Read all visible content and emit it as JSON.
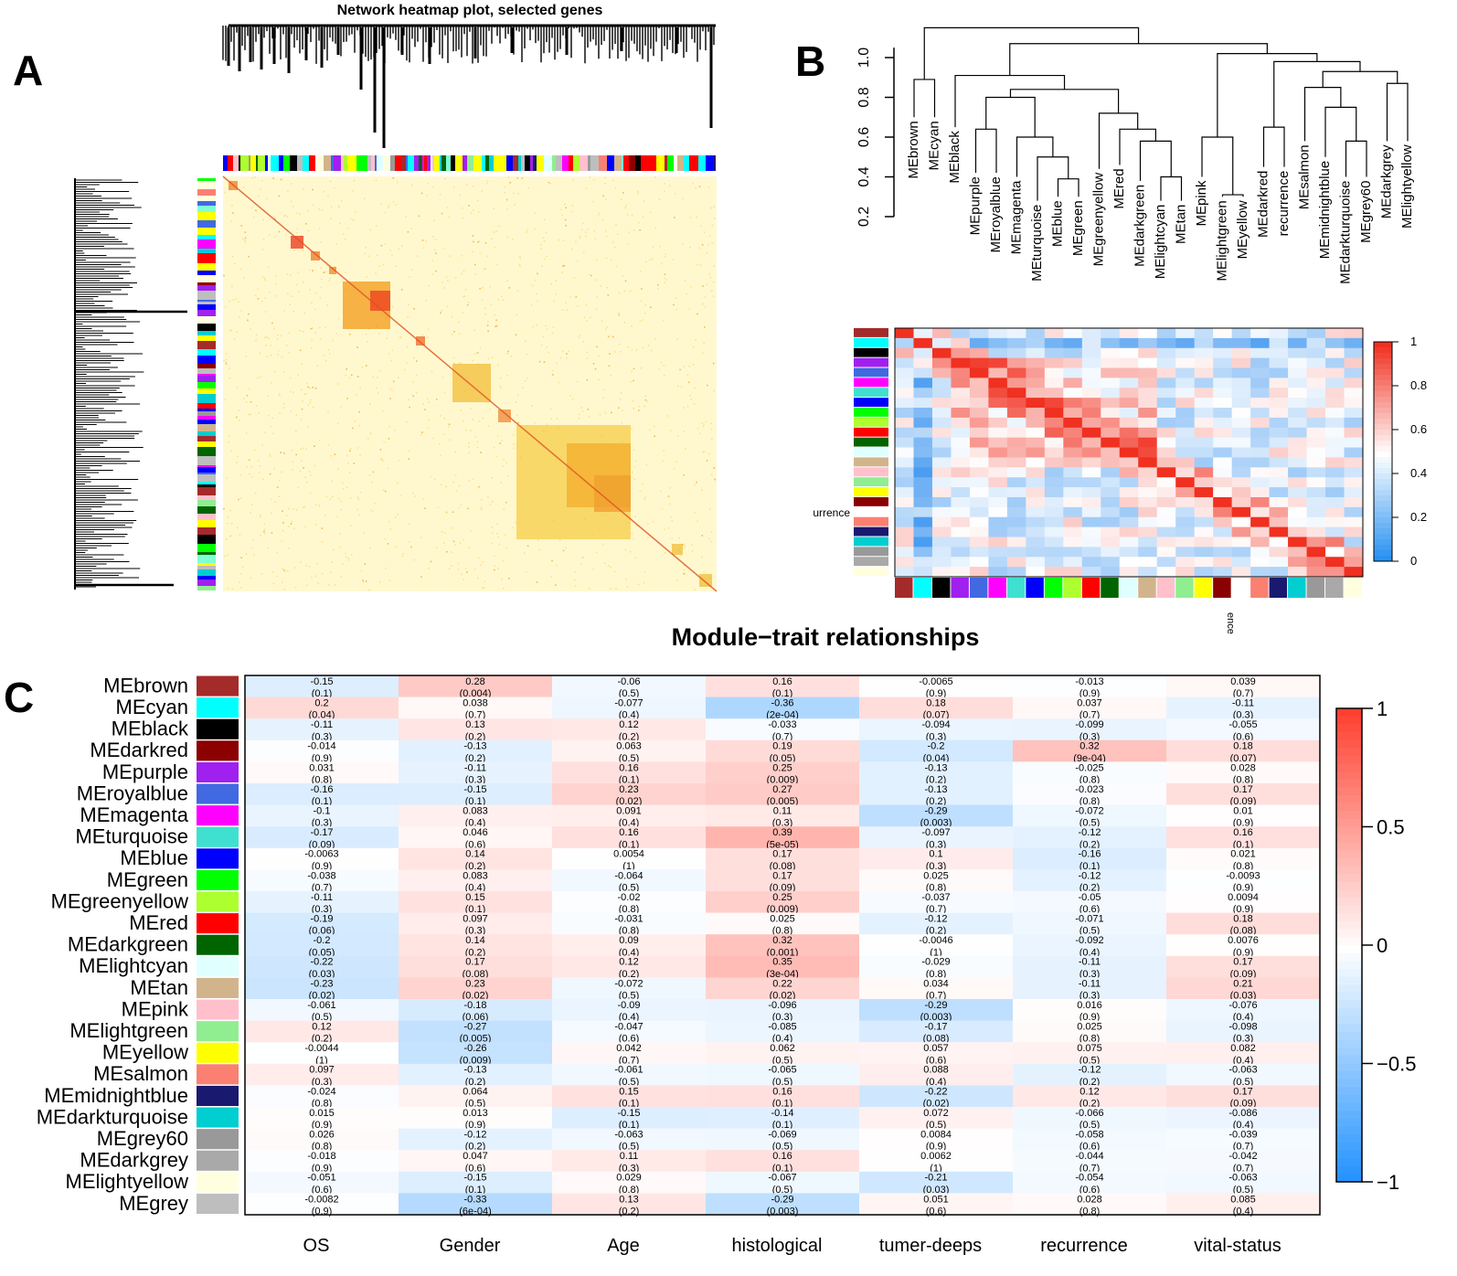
{
  "panels": {
    "a": "A",
    "b": "B",
    "c": "C"
  },
  "panel_a": {
    "title": "Network heatmap plot, selected genes",
    "color_bar": [
      "#7fffd4",
      "#ff0000",
      "#00ff00",
      "#4169e1",
      "#000000",
      "#bebebe",
      "#ff00ff",
      "#ffff00",
      "#a52a2a",
      "#0000ff",
      "#00ced1",
      "#ffc0cb",
      "#90ee90",
      "#adff2f",
      "#d2b48c",
      "#fa8072",
      "#a020f0",
      "#191970",
      "#006400",
      "#8b0000",
      "#ffffe0",
      "#e0ffff",
      "#999999",
      "#00ffff",
      "#ff0000",
      "#ffff00",
      "#0000ff",
      "#bebebe",
      "#00ff00",
      "#ff00ff"
    ]
  },
  "panel_b": {
    "y_ticks": [
      "0.2",
      "0.4",
      "0.6",
      "0.8",
      "1.0"
    ],
    "leaf_labels": [
      "MEbrown",
      "MEcyan",
      "MEblack",
      "MEpurple",
      "MEroyalblue",
      "MEmagenta",
      "MEturquoise",
      "MEblue",
      "MEgreen",
      "MEgreenyellow",
      "MEred",
      "MEdarkgreen",
      "MElightcyan",
      "MEtan",
      "MEpink",
      "MElightgreen",
      "MEyellow",
      "MEdarkred",
      "recurrence",
      "MEsalmon",
      "MEmidnightblue",
      "MEdarkturquoise",
      "MEgrey60",
      "MEdarkgrey",
      "MElightyellow"
    ],
    "matrix_colors": [
      "#a52a2a",
      "#00ffff",
      "#000000",
      "#a020f0",
      "#4169e1",
      "#ff00ff",
      "#40e0d0",
      "#0000ff",
      "#00ff00",
      "#adff2f",
      "#ff0000",
      "#006400",
      "#e0ffff",
      "#d2b48c",
      "#ffc0cb",
      "#90ee90",
      "#ffff00",
      "#8b0000",
      "#ffffff",
      "#fa8072",
      "#191970",
      "#00ced1",
      "#999999",
      "#a9a9a9",
      "#ffffe0"
    ],
    "side_label": "urrence",
    "bottom_label": "ence",
    "legend_ticks": [
      "1",
      "0.8",
      "0.6",
      "0.4",
      "0.2",
      "0"
    ]
  },
  "chart_data": {
    "type": "heatmap",
    "title": "Module−trait relationships",
    "columns": [
      "OS",
      "Gender",
      "Age",
      "histological",
      "tumer-deeps",
      "recurrence",
      "vital-status"
    ],
    "rows": [
      {
        "name": "MEbrown",
        "color": "#a52a2a",
        "values": [
          "-0.15",
          "0.28",
          "-0.06",
          "0.16",
          "-0.0065",
          "-0.013",
          "0.039"
        ],
        "pvalues": [
          "(0.1)",
          "(0.004)",
          "(0.5)",
          "(0.1)",
          "(0.9)",
          "(0.9)",
          "(0.7)"
        ]
      },
      {
        "name": "MEcyan",
        "color": "#00ffff",
        "values": [
          "0.2",
          "0.038",
          "-0.077",
          "-0.36",
          "0.18",
          "0.037",
          "-0.11"
        ],
        "pvalues": [
          "(0.04)",
          "(0.7)",
          "(0.4)",
          "(2e-04)",
          "(0.07)",
          "(0.7)",
          "(0.3)"
        ]
      },
      {
        "name": "MEblack",
        "color": "#000000",
        "values": [
          "-0.11",
          "0.13",
          "0.12",
          "-0.033",
          "-0.094",
          "-0.099",
          "-0.055"
        ],
        "pvalues": [
          "(0.3)",
          "(0.2)",
          "(0.2)",
          "(0.7)",
          "(0.3)",
          "(0.3)",
          "(0.6)"
        ]
      },
      {
        "name": "MEdarkred",
        "color": "#8b0000",
        "values": [
          "-0.014",
          "-0.13",
          "0.063",
          "0.19",
          "-0.2",
          "0.32",
          "0.18"
        ],
        "pvalues": [
          "(0.9)",
          "(0.2)",
          "(0.5)",
          "(0.05)",
          "(0.04)",
          "(9e-04)",
          "(0.07)"
        ]
      },
      {
        "name": "MEpurple",
        "color": "#a020f0",
        "values": [
          "0.031",
          "-0.11",
          "0.16",
          "0.25",
          "-0.13",
          "-0.025",
          "0.028"
        ],
        "pvalues": [
          "(0.8)",
          "(0.3)",
          "(0.1)",
          "(0.009)",
          "(0.2)",
          "(0.8)",
          "(0.8)"
        ]
      },
      {
        "name": "MEroyalblue",
        "color": "#4169e1",
        "values": [
          "-0.16",
          "-0.15",
          "0.23",
          "0.27",
          "-0.13",
          "-0.023",
          "0.17"
        ],
        "pvalues": [
          "(0.1)",
          "(0.1)",
          "(0.02)",
          "(0.005)",
          "(0.2)",
          "(0.8)",
          "(0.09)"
        ]
      },
      {
        "name": "MEmagenta",
        "color": "#ff00ff",
        "values": [
          "-0.1",
          "0.083",
          "0.091",
          "0.11",
          "-0.29",
          "-0.072",
          "0.01"
        ],
        "pvalues": [
          "(0.3)",
          "(0.4)",
          "(0.4)",
          "(0.3)",
          "(0.003)",
          "(0.5)",
          "(0.9)"
        ]
      },
      {
        "name": "MEturquoise",
        "color": "#40e0d0",
        "values": [
          "-0.17",
          "0.046",
          "0.16",
          "0.39",
          "-0.097",
          "-0.12",
          "0.16"
        ],
        "pvalues": [
          "(0.09)",
          "(0.6)",
          "(0.1)",
          "(5e-05)",
          "(0.3)",
          "(0.2)",
          "(0.1)"
        ]
      },
      {
        "name": "MEblue",
        "color": "#0000ff",
        "values": [
          "-0.0063",
          "0.14",
          "0.0054",
          "0.17",
          "0.1",
          "-0.16",
          "0.021"
        ],
        "pvalues": [
          "(0.9)",
          "(0.2)",
          "(1)",
          "(0.08)",
          "(0.3)",
          "(0.1)",
          "(0.8)"
        ]
      },
      {
        "name": "MEgreen",
        "color": "#00ff00",
        "values": [
          "-0.038",
          "0.083",
          "-0.064",
          "0.17",
          "0.025",
          "-0.12",
          "-0.0093"
        ],
        "pvalues": [
          "(0.7)",
          "(0.4)",
          "(0.5)",
          "(0.09)",
          "(0.8)",
          "(0.2)",
          "(0.9)"
        ]
      },
      {
        "name": "MEgreenyellow",
        "color": "#adff2f",
        "values": [
          "-0.11",
          "0.15",
          "-0.02",
          "0.25",
          "-0.037",
          "-0.05",
          "0.0094"
        ],
        "pvalues": [
          "(0.3)",
          "(0.1)",
          "(0.8)",
          "(0.009)",
          "(0.7)",
          "(0.6)",
          "(0.9)"
        ]
      },
      {
        "name": "MEred",
        "color": "#ff0000",
        "values": [
          "-0.19",
          "0.097",
          "-0.031",
          "0.025",
          "-0.12",
          "-0.071",
          "0.18"
        ],
        "pvalues": [
          "(0.06)",
          "(0.3)",
          "(0.8)",
          "(0.8)",
          "(0.2)",
          "(0.5)",
          "(0.08)"
        ]
      },
      {
        "name": "MEdarkgreen",
        "color": "#006400",
        "values": [
          "-0.2",
          "0.14",
          "0.09",
          "0.32",
          "-0.0046",
          "-0.092",
          "0.0076"
        ],
        "pvalues": [
          "(0.05)",
          "(0.2)",
          "(0.4)",
          "(0.001)",
          "(1)",
          "(0.4)",
          "(0.9)"
        ]
      },
      {
        "name": "MElightcyan",
        "color": "#e0ffff",
        "values": [
          "-0.22",
          "0.17",
          "0.12",
          "0.35",
          "-0.029",
          "-0.11",
          "0.17"
        ],
        "pvalues": [
          "(0.03)",
          "(0.08)",
          "(0.2)",
          "(3e-04)",
          "(0.8)",
          "(0.3)",
          "(0.09)"
        ]
      },
      {
        "name": "MEtan",
        "color": "#d2b48c",
        "values": [
          "-0.23",
          "0.23",
          "-0.072",
          "0.22",
          "0.034",
          "-0.11",
          "0.21"
        ],
        "pvalues": [
          "(0.02)",
          "(0.02)",
          "(0.5)",
          "(0.02)",
          "(0.7)",
          "(0.3)",
          "(0.03)"
        ]
      },
      {
        "name": "MEpink",
        "color": "#ffc0cb",
        "values": [
          "-0.061",
          "-0.18",
          "-0.09",
          "-0.096",
          "-0.29",
          "0.016",
          "-0.076"
        ],
        "pvalues": [
          "(0.5)",
          "(0.06)",
          "(0.4)",
          "(0.3)",
          "(0.003)",
          "(0.9)",
          "(0.4)"
        ]
      },
      {
        "name": "MElightgreen",
        "color": "#90ee90",
        "values": [
          "0.12",
          "-0.27",
          "-0.047",
          "-0.085",
          "-0.17",
          "0.025",
          "-0.098"
        ],
        "pvalues": [
          "(0.2)",
          "(0.005)",
          "(0.6)",
          "(0.4)",
          "(0.08)",
          "(0.8)",
          "(0.3)"
        ]
      },
      {
        "name": "MEyellow",
        "color": "#ffff00",
        "values": [
          "-0.0044",
          "-0.26",
          "0.042",
          "0.062",
          "0.057",
          "0.075",
          "0.082"
        ],
        "pvalues": [
          "(1)",
          "(0.009)",
          "(0.7)",
          "(0.5)",
          "(0.6)",
          "(0.5)",
          "(0.4)"
        ]
      },
      {
        "name": "MEsalmon",
        "color": "#fa8072",
        "values": [
          "0.097",
          "-0.13",
          "-0.061",
          "-0.065",
          "0.088",
          "-0.12",
          "-0.063"
        ],
        "pvalues": [
          "(0.3)",
          "(0.2)",
          "(0.5)",
          "(0.5)",
          "(0.4)",
          "(0.2)",
          "(0.5)"
        ]
      },
      {
        "name": "MEmidnightblue",
        "color": "#191970",
        "values": [
          "-0.024",
          "0.064",
          "0.15",
          "0.16",
          "-0.22",
          "0.12",
          "0.17"
        ],
        "pvalues": [
          "(0.8)",
          "(0.5)",
          "(0.1)",
          "(0.1)",
          "(0.02)",
          "(0.2)",
          "(0.09)"
        ]
      },
      {
        "name": "MEdarkturquoise",
        "color": "#00ced1",
        "values": [
          "0.015",
          "0.013",
          "-0.15",
          "-0.14",
          "0.072",
          "-0.066",
          "-0.086"
        ],
        "pvalues": [
          "(0.9)",
          "(0.9)",
          "(0.1)",
          "(0.1)",
          "(0.5)",
          "(0.5)",
          "(0.4)"
        ]
      },
      {
        "name": "MEgrey60",
        "color": "#999999",
        "values": [
          "0.026",
          "-0.12",
          "-0.063",
          "-0.069",
          "0.0084",
          "-0.058",
          "-0.039"
        ],
        "pvalues": [
          "(0.8)",
          "(0.2)",
          "(0.5)",
          "(0.5)",
          "(0.9)",
          "(0.6)",
          "(0.7)"
        ]
      },
      {
        "name": "MEdarkgrey",
        "color": "#a9a9a9",
        "values": [
          "-0.018",
          "0.047",
          "0.11",
          "0.16",
          "0.0062",
          "-0.044",
          "-0.042"
        ],
        "pvalues": [
          "(0.9)",
          "(0.6)",
          "(0.3)",
          "(0.1)",
          "(1)",
          "(0.7)",
          "(0.7)"
        ]
      },
      {
        "name": "MElightyellow",
        "color": "#ffffe0",
        "values": [
          "-0.051",
          "-0.15",
          "0.029",
          "-0.067",
          "-0.21",
          "-0.054",
          "-0.063"
        ],
        "pvalues": [
          "(0.6)",
          "(0.1)",
          "(0.8)",
          "(0.5)",
          "(0.03)",
          "(0.6)",
          "(0.5)"
        ]
      },
      {
        "name": "MEgrey",
        "color": "#bebebe",
        "values": [
          "-0.0082",
          "-0.33",
          "0.13",
          "-0.29",
          "0.051",
          "0.028",
          "0.085"
        ],
        "pvalues": [
          "(0.9)",
          "(6e-04)",
          "(0.2)",
          "(0.003)",
          "(0.6)",
          "(0.8)",
          "(0.4)"
        ]
      }
    ],
    "legend": {
      "ticks": [
        "1",
        "0.5",
        "0",
        "−0.5",
        "−1"
      ],
      "range": [
        -1,
        1
      ],
      "low_color": "#1e90ff",
      "mid_color": "#ffffff",
      "high_color": "#ff4030"
    }
  }
}
